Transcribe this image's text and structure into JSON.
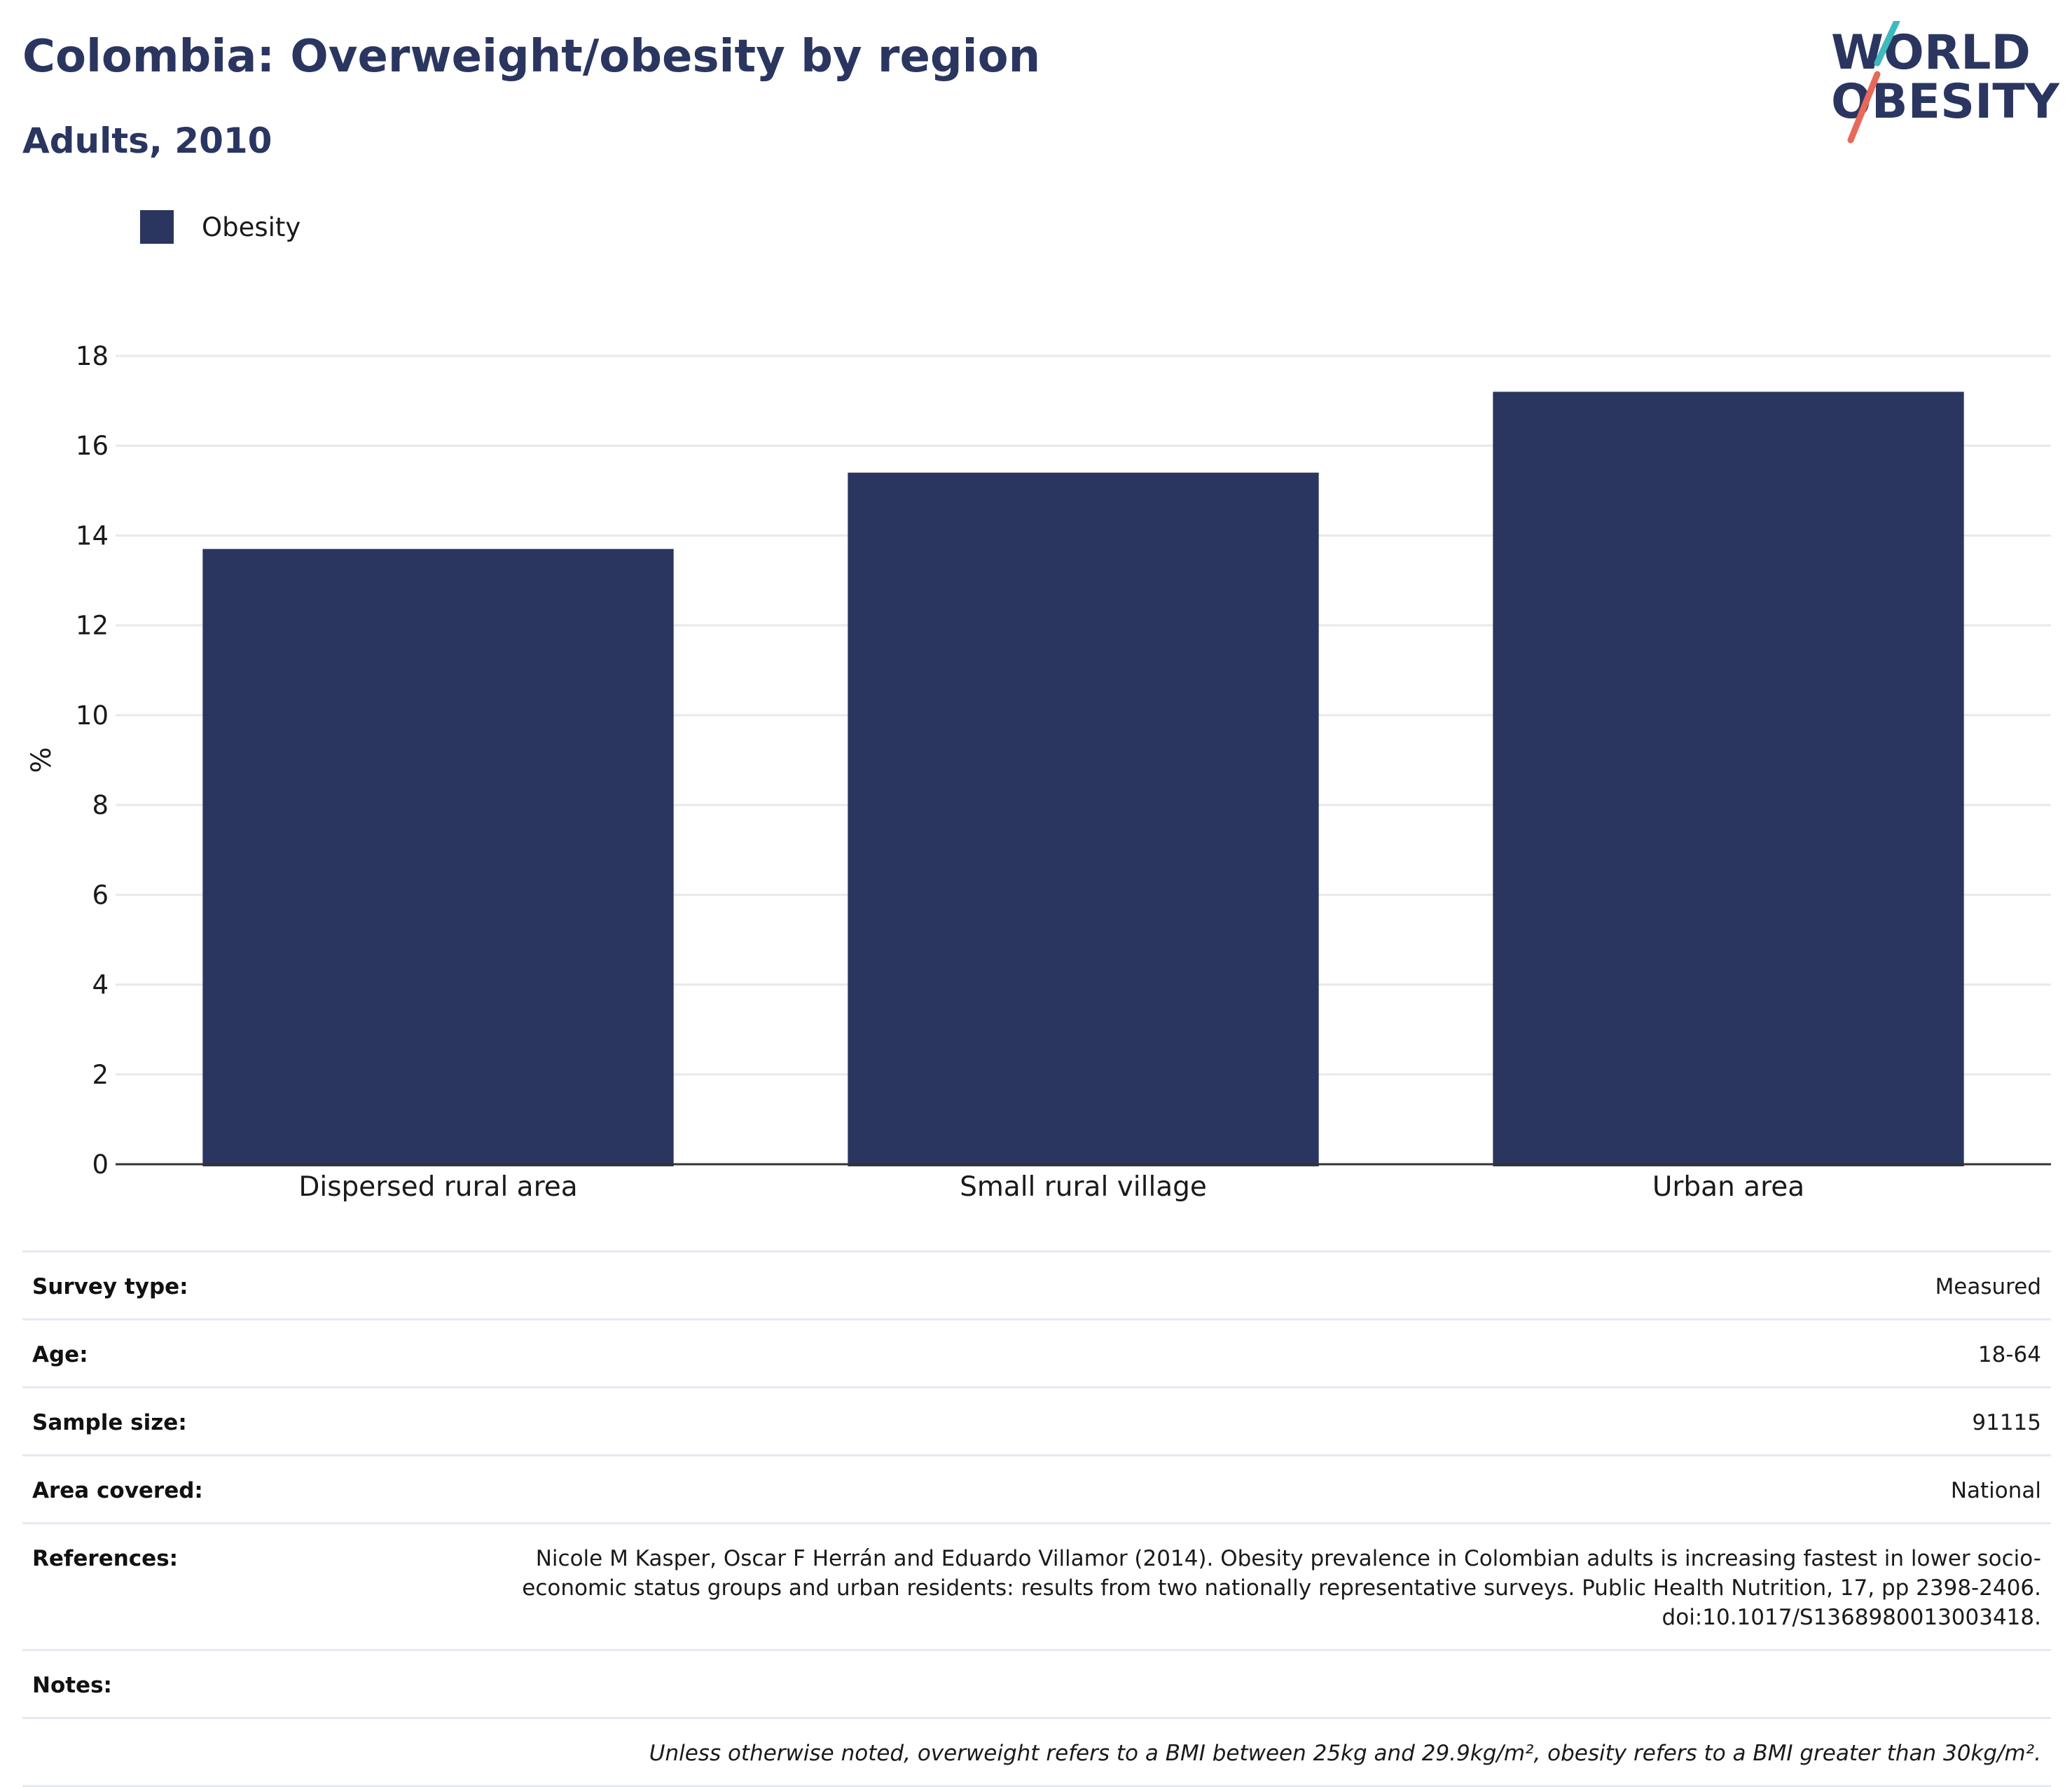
{
  "header": {
    "title": "Colombia: Overweight/obesity by region",
    "subtitle": "Adults, 2010"
  },
  "logo": {
    "line1": "WORLD",
    "line2": "OBESITY",
    "colors": {
      "text": "#2a3660",
      "slash_top": "#3fb8bf",
      "slash_bottom": "#e8685a"
    }
  },
  "legend": {
    "items": [
      {
        "label": "Obesity",
        "color": "#2a3660"
      }
    ]
  },
  "chart_data": {
    "type": "bar",
    "categories": [
      "Dispersed rural area",
      "Small rural village",
      "Urban area"
    ],
    "series": [
      {
        "name": "Obesity",
        "values": [
          13.7,
          15.4,
          17.2
        ],
        "color": "#2a3660"
      }
    ],
    "ylabel": "%",
    "xlabel": "",
    "ylim": [
      0,
      18
    ],
    "yticks": [
      0,
      2,
      4,
      6,
      8,
      10,
      12,
      14,
      16,
      18
    ],
    "grid": true,
    "legend_position": "top-left"
  },
  "info": {
    "rows": [
      {
        "key": "Survey type:",
        "value": "Measured"
      },
      {
        "key": "Age:",
        "value": "18-64"
      },
      {
        "key": "Sample size:",
        "value": "91115"
      },
      {
        "key": "Area covered:",
        "value": "National"
      },
      {
        "key": "References:",
        "value": "Nicole M Kasper, Oscar F Herrán and Eduardo Villamor (2014). Obesity prevalence in Colombian adults is increasing fastest in lower socio-economic status groups and urban residents: results from two nationally representative surveys. Public Health Nutrition, 17, pp 2398-2406. doi:10.1017/S1368980013003418."
      },
      {
        "key": "Notes:",
        "value": ""
      }
    ],
    "note": "Unless otherwise noted, overweight refers to a BMI between 25kg and 29.9kg/m², obesity refers to a BMI greater than 30kg/m²."
  }
}
